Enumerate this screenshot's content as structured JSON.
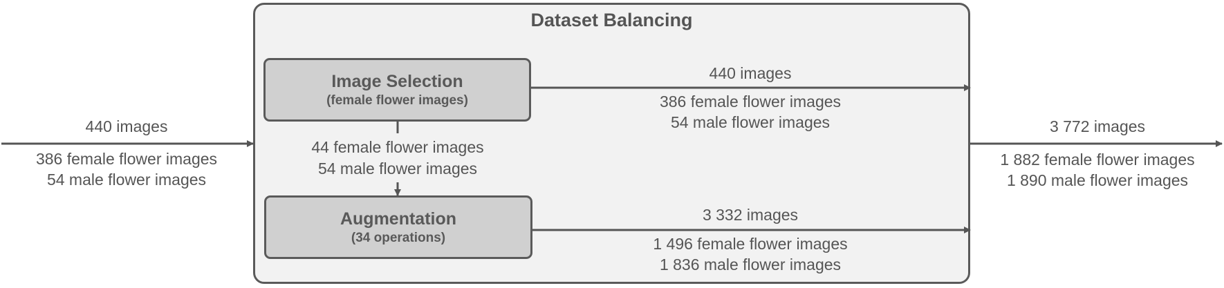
{
  "diagram": {
    "title": "Dataset Balancing",
    "image_selection": {
      "label": "Image Selection",
      "sublabel": "(female flower images)"
    },
    "augmentation": {
      "label": "Augmentation",
      "sublabel": "(34 operations)"
    },
    "input": {
      "total": "440 images",
      "female": "386 female flower images",
      "male": "54 male flower images"
    },
    "selection_output": {
      "total": "440 images",
      "female": "386 female flower images",
      "male": "54 male flower images"
    },
    "selection_to_augmentation": {
      "female": "44 female flower images",
      "male": "54 male flower images"
    },
    "augmentation_output": {
      "total": "3 332 images",
      "female": "1 496 female flower images",
      "male": "1 836 male flower images"
    },
    "output": {
      "total": "3 772 images",
      "female": "1 882 female flower images",
      "male": "1 890 male flower images"
    },
    "colors": {
      "line": "#555555",
      "container_fill": "#f2f2f2",
      "box_fill": "#d0d0d0",
      "text": "#555555"
    }
  }
}
